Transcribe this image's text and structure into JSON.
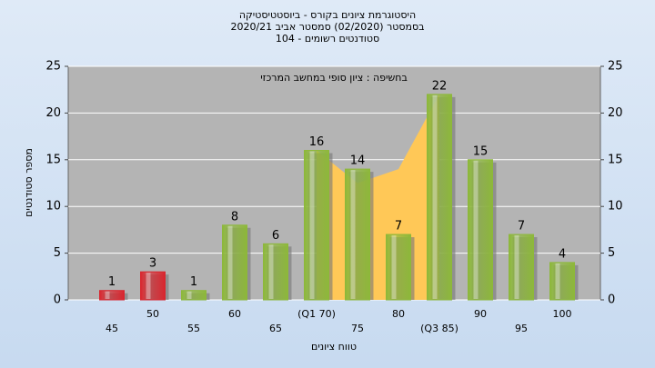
{
  "chart_data": {
    "type": "bar",
    "title_lines": [
      "היסטוגרמת ציונים בקורס - ביוסטטיסטיקה",
      "בסמסטר (02/2020) סמסטר אביב 2020/21",
      "סטודנטים רשומים - 104"
    ],
    "annotation": "בחשיפה : ציון סופי במחשב המרכזי",
    "x_label": "טווח ציונים",
    "y_label": "מספר סטודנטים",
    "categories": [
      "45",
      "50",
      "55",
      "60",
      "65",
      "(Q1 70)",
      "75",
      "80",
      "(Q3 85)",
      "90",
      "95",
      "100"
    ],
    "values": [
      1,
      3,
      1,
      8,
      6,
      16,
      14,
      7,
      22,
      15,
      7,
      4
    ],
    "colors": [
      "#d9262e",
      "#d9262e",
      "#8db83a",
      "#8db83a",
      "#8db83a",
      "#8db83a",
      "#8db83a",
      "#8db83a",
      "#8db83a",
      "#8db83a",
      "#8db83a",
      "#8db83a"
    ],
    "quartile_area": {
      "color": "#ffc857",
      "values": [
        null,
        null,
        null,
        null,
        null,
        16,
        12.5,
        14,
        22,
        null,
        null,
        null
      ]
    },
    "ylim": [
      0,
      25
    ],
    "yticks": [
      0,
      5,
      10,
      15,
      20,
      25
    ],
    "grid": true
  }
}
